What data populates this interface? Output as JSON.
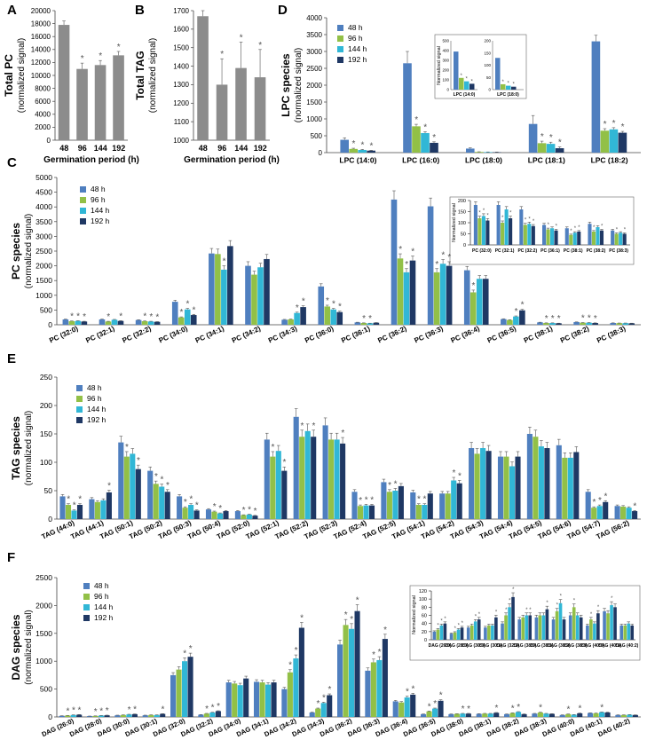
{
  "series_colors": {
    "48 h": "#4f7fbf",
    "96 h": "#92c047",
    "144 h": "#31b7d6",
    "192 h": "#1f3864",
    "gray": "#8c8c8c"
  },
  "chart_data": [
    {
      "panel": "A",
      "type": "bar",
      "title": "",
      "ylabel": "Total PC (normalized signal)",
      "xlabel": "Germination period (h)",
      "categories": [
        "48",
        "96",
        "144",
        "192"
      ],
      "values": [
        17800,
        11000,
        11600,
        13100
      ],
      "errors": [
        600,
        900,
        700,
        600
      ],
      "significant": [
        false,
        true,
        true,
        true
      ],
      "ylim": [
        0,
        20000
      ],
      "yticks": [
        0,
        2000,
        4000,
        6000,
        8000,
        10000,
        12000,
        14000,
        16000,
        18000,
        20000
      ]
    },
    {
      "panel": "B",
      "type": "bar",
      "title": "",
      "ylabel": "Total TAG (normalized signal)",
      "xlabel": "Germination period (h)",
      "categories": [
        "48",
        "96",
        "144",
        "192"
      ],
      "values": [
        1670,
        1300,
        1390,
        1340
      ],
      "errors": [
        45,
        140,
        140,
        150
      ],
      "significant": [
        false,
        true,
        true,
        true
      ],
      "ylim": [
        1000,
        1700
      ],
      "yticks": [
        1000,
        1100,
        1200,
        1300,
        1400,
        1500,
        1600,
        1700
      ]
    },
    {
      "panel": "D",
      "type": "bar",
      "ylabel": "LPC species (normalized signal)",
      "categories": [
        "LPC (14:0)",
        "LPC (16:0)",
        "LPC (18:0)",
        "LPC (18:1)",
        "LPC (18:2)"
      ],
      "series": [
        {
          "name": "48 h",
          "values": [
            380,
            2650,
            120,
            850,
            3300
          ]
        },
        {
          "name": "96 h",
          "values": [
            110,
            780,
            20,
            280,
            650
          ]
        },
        {
          "name": "144 h",
          "values": [
            80,
            580,
            15,
            260,
            690
          ]
        },
        {
          "name": "192 h",
          "values": [
            60,
            290,
            12,
            130,
            590
          ]
        }
      ],
      "errors": [
        [
          60,
          350,
          20,
          250,
          180
        ],
        [
          20,
          60,
          5,
          60,
          60
        ],
        [
          15,
          40,
          5,
          50,
          50
        ],
        [
          10,
          30,
          5,
          40,
          40
        ]
      ],
      "significant": [
        [
          false,
          false,
          false,
          false,
          false
        ],
        [
          true,
          true,
          false,
          true,
          true
        ],
        [
          true,
          true,
          false,
          true,
          true
        ],
        [
          true,
          true,
          false,
          true,
          true
        ]
      ],
      "ylim": [
        0,
        4000
      ],
      "yticks": [
        0,
        500,
        1000,
        1500,
        2000,
        2500,
        3000,
        3500,
        4000
      ],
      "legend": [
        "48 h",
        "96 h",
        "144 h",
        "192 h"
      ],
      "inset": {
        "ylabel": "Normalized signal",
        "subcharts": [
          {
            "label": "LPC (14:0)",
            "values": [
              390,
              120,
              85,
              60
            ],
            "ylim": [
              0,
              500
            ],
            "yticks": [
              0,
              100,
              200,
              300,
              400,
              500
            ]
          },
          {
            "label": "LPC (18:0)",
            "values": [
              130,
              22,
              16,
              12
            ],
            "ylim": [
              0,
              200
            ],
            "yticks": [
              0,
              50,
              100,
              150,
              200
            ]
          }
        ]
      }
    },
    {
      "panel": "C",
      "type": "bar",
      "ylabel": "PC species (normalized signal)",
      "categories": [
        "PC (32:0)",
        "PC (32:1)",
        "PC (32:2)",
        "PC (34:0)",
        "PC (34:1)",
        "PC (34:2)",
        "PC (34:3)",
        "PC (36:0)",
        "PC (36:1)",
        "PC (36:2)",
        "PC (36:3)",
        "PC (36:4)",
        "PC (36:5)",
        "PC (38:1)",
        "PC (38:2)",
        "PC (38:3)"
      ],
      "series": [
        {
          "name": "48 h",
          "values": [
            180,
            180,
            160,
            780,
            2420,
            2000,
            170,
            1300,
            80,
            4250,
            4020,
            1850,
            190,
            80,
            90,
            60
          ]
        },
        {
          "name": "96 h",
          "values": [
            120,
            110,
            120,
            250,
            2400,
            1700,
            180,
            620,
            60,
            2250,
            1780,
            1100,
            160,
            60,
            70,
            55
          ]
        },
        {
          "name": "144 h",
          "values": [
            130,
            170,
            110,
            520,
            1870,
            1950,
            400,
            520,
            50,
            1780,
            2070,
            1560,
            280,
            60,
            70,
            55
          ]
        },
        {
          "name": "192 h",
          "values": [
            110,
            130,
            100,
            330,
            2670,
            2230,
            600,
            430,
            70,
            2180,
            2000,
            1560,
            490,
            50,
            60,
            50
          ]
        }
      ],
      "ylim": [
        0,
        5000
      ],
      "yticks": [
        0,
        500,
        1000,
        1500,
        2000,
        2500,
        3000,
        3500,
        4000,
        4500,
        5000
      ],
      "legend": [
        "48 h",
        "96 h",
        "144 h",
        "192 h"
      ],
      "inset": {
        "ylabel": "Normalized signal",
        "categories": [
          "PC (32:0)",
          "PC (32:1)",
          "PC (32:2)",
          "PC (36:1)",
          "PC (38:1)",
          "PC (38:2)",
          "PC (38:3)"
        ],
        "series": [
          {
            "name": "48 h",
            "values": [
              180,
              180,
              160,
              90,
              75,
              95,
              65
            ]
          },
          {
            "name": "96 h",
            "values": [
              120,
              100,
              90,
              70,
              45,
              60,
              50
            ]
          },
          {
            "name": "144 h",
            "values": [
              130,
              160,
              95,
              75,
              55,
              80,
              55
            ]
          },
          {
            "name": "192 h",
            "values": [
              110,
              120,
              85,
              65,
              60,
              65,
              50
            ]
          }
        ],
        "ylim": [
          0,
          200
        ],
        "yticks": [
          0,
          50,
          100,
          150,
          200
        ]
      }
    },
    {
      "panel": "E",
      "type": "bar",
      "ylabel": "TAG species (normalized signal)",
      "categories": [
        "TAG (44:0)",
        "TAG (44:1)",
        "TAG (50:1)",
        "TAG (50:2)",
        "TAG (50:3)",
        "TAG (50:4)",
        "TAG (52:0)",
        "TAG (52:1)",
        "TAG (52:2)",
        "TAG (52:3)",
        "TAG (52:4)",
        "TAG (52:5)",
        "TAG (54:1)",
        "TAG (54:2)",
        "TAG (54:3)",
        "TAG (54:4)",
        "TAG (54:5)",
        "TAG (54:6)",
        "TAG (54:7)",
        "TAG (56:2)"
      ],
      "series": [
        {
          "name": "48 h",
          "values": [
            40,
            35,
            135,
            85,
            40,
            17,
            14,
            140,
            180,
            165,
            48,
            65,
            47,
            45,
            125,
            110,
            150,
            130,
            48,
            23
          ]
        },
        {
          "name": "96 h",
          "values": [
            25,
            30,
            110,
            62,
            20,
            13,
            7,
            110,
            145,
            140,
            23,
            48,
            25,
            45,
            115,
            110,
            145,
            108,
            20,
            22
          ]
        },
        {
          "name": "144 h",
          "values": [
            15,
            33,
            115,
            57,
            25,
            10,
            8,
            120,
            155,
            140,
            24,
            50,
            25,
            68,
            125,
            93,
            128,
            108,
            23,
            20
          ]
        },
        {
          "name": "192 h",
          "values": [
            25,
            47,
            88,
            48,
            15,
            14,
            6,
            85,
            145,
            133,
            24,
            58,
            45,
            63,
            120,
            110,
            125,
            118,
            30,
            14
          ]
        }
      ],
      "ylim": [
        0,
        250
      ],
      "yticks": [
        0,
        50,
        100,
        150,
        200,
        250
      ],
      "legend": [
        "48 h",
        "96 h",
        "144 h",
        "192 h"
      ]
    },
    {
      "panel": "F",
      "type": "bar",
      "ylabel": "DAG species (normalized signal)",
      "categories": [
        "DAG (26:0)",
        "DAG (28:0)",
        "DAG (30:0)",
        "DAG (30:1)",
        "DAG (32:0)",
        "DAG (32:2)",
        "DAG (34:0)",
        "DAG (34:1)",
        "DAG (34:2)",
        "DAG (34:3)",
        "DAG (36:2)",
        "DAG (36:3)",
        "DAG (36:4)",
        "DAG (36:5)",
        "DAG (38:0)",
        "DAG (38:1)",
        "DAG (38:2)",
        "DAG (38:3)",
        "DAG (40:0)",
        "DAG (40:1)",
        "DAG (40:2)"
      ],
      "series": [
        {
          "name": "48 h",
          "values": [
            20,
            15,
            30,
            30,
            750,
            40,
            620,
            630,
            500,
            80,
            1300,
            830,
            280,
            50,
            50,
            55,
            50,
            60,
            35,
            70,
            35
          ]
        },
        {
          "name": "96 h",
          "values": [
            25,
            18,
            35,
            35,
            850,
            60,
            600,
            620,
            800,
            150,
            1650,
            980,
            260,
            100,
            55,
            60,
            70,
            80,
            50,
            65,
            35
          ]
        },
        {
          "name": "144 h",
          "values": [
            35,
            25,
            45,
            35,
            1000,
            80,
            570,
            580,
            1050,
            250,
            1580,
            1020,
            350,
            150,
            60,
            60,
            90,
            60,
            40,
            85,
            40
          ]
        },
        {
          "name": "192 h",
          "values": [
            40,
            30,
            50,
            55,
            1080,
            105,
            690,
            620,
            1600,
            390,
            1900,
            1400,
            400,
            290,
            60,
            75,
            50,
            55,
            65,
            80,
            35
          ]
        }
      ],
      "ylim": [
        0,
        2500
      ],
      "yticks": [
        0,
        500,
        1000,
        1500,
        2000,
        2500
      ],
      "legend": [
        "48 h",
        "96 h",
        "144 h",
        "192 h"
      ],
      "inset": {
        "ylabel": "Normalized signal",
        "categories": [
          "DAG (26:0)",
          "DAG (28:0)",
          "DAG (30:0)",
          "DAG (30:1)",
          "DAG (32:2)",
          "DAG (38:0)",
          "DAG (38:1)",
          "DAG (38:2)",
          "DAG (38:3)",
          "DAG (40:0)",
          "DAG (40:1)",
          "DAG (40:2)"
        ],
        "series": [
          {
            "name": "48 h",
            "values": [
              20,
              15,
              30,
              30,
              40,
              50,
              55,
              50,
              60,
              35,
              70,
              35
            ]
          },
          {
            "name": "96 h",
            "values": [
              25,
              18,
              35,
              35,
              60,
              55,
              60,
              70,
              80,
              50,
              65,
              35
            ]
          },
          {
            "name": "144 h",
            "values": [
              35,
              25,
              45,
              35,
              80,
              60,
              60,
              90,
              60,
              40,
              85,
              40
            ]
          },
          {
            "name": "192 h",
            "values": [
              40,
              30,
              50,
              55,
              105,
              60,
              75,
              50,
              55,
              65,
              80,
              35
            ]
          }
        ],
        "ylim": [
          0,
          120
        ],
        "yticks": [
          0,
          20,
          40,
          60,
          80,
          100,
          120
        ]
      }
    }
  ]
}
